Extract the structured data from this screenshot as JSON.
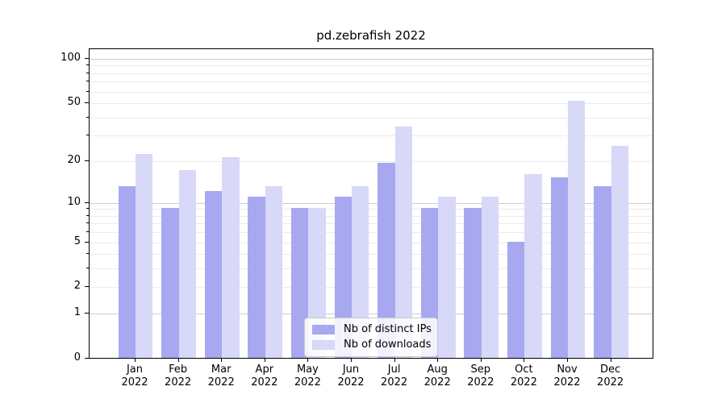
{
  "chart_data": {
    "type": "bar",
    "title": "pd.zebrafish 2022",
    "categories": [
      "Jan",
      "Feb",
      "Mar",
      "Apr",
      "May",
      "Jun",
      "Jul",
      "Aug",
      "Sep",
      "Oct",
      "Nov",
      "Dec"
    ],
    "year_label": "2022",
    "series": [
      {
        "name": "Nb of distinct IPs",
        "key": "distinct-ips",
        "color": "#a8a8f0",
        "values": [
          13,
          9,
          12,
          11,
          9,
          11,
          19,
          9,
          9,
          5,
          15,
          13
        ]
      },
      {
        "name": "Nb of downloads",
        "key": "downloads",
        "color": "#d8d8f8",
        "values": [
          22,
          17,
          21,
          13,
          9,
          13,
          34,
          11,
          11,
          16,
          51,
          25
        ]
      }
    ],
    "yscale": "log1p",
    "ylim": [
      0,
      116
    ],
    "y_major_ticks": [
      0,
      1,
      2,
      5,
      10,
      20,
      50,
      100
    ],
    "y_minor_gridlines": [
      3,
      4,
      6,
      7,
      8,
      9,
      30,
      40,
      60,
      70,
      80,
      90
    ],
    "major_gridline_values": [
      1,
      10,
      100
    ],
    "grid": true,
    "legend_position": "lower center",
    "colors": {
      "grid_major": "#cccccc",
      "grid_minor": "#ebebeb",
      "axis": "#000000",
      "background": "#ffffff",
      "text": "#000000"
    }
  }
}
